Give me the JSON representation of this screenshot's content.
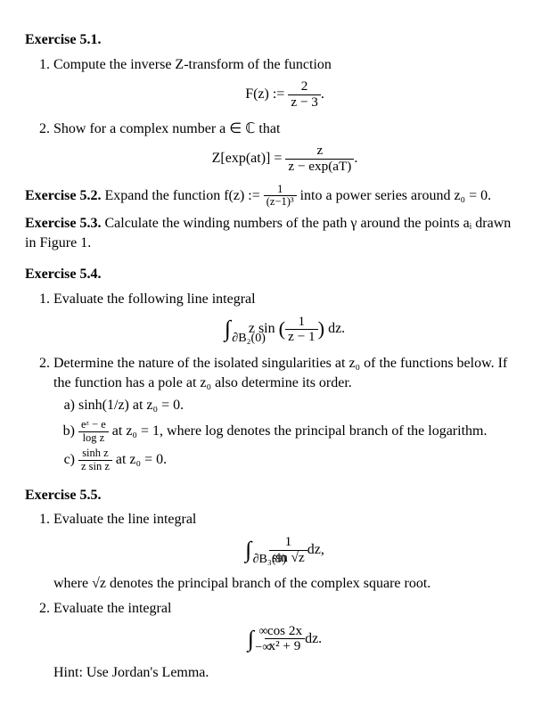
{
  "ex51": {
    "title": "Exercise 5.1.",
    "item1": "Compute the inverse Z-transform of the function",
    "formula1_lhs": "F(z) :=",
    "formula1_num": "2",
    "formula1_den": "z − 3",
    "formula1_end": ".",
    "item2": "Show for a complex number a ∈ ℂ that",
    "formula2_lhs": "Z[exp(at)] =",
    "formula2_num": "z",
    "formula2_den": "z − exp(aT)",
    "formula2_end": "."
  },
  "ex52": {
    "title": "Exercise 5.2.",
    "text_a": "Expand the function f(z) := ",
    "frac_num": "1",
    "frac_den": "(z−1)³",
    "text_b": " into a power series around z₀ = 0."
  },
  "ex53": {
    "title": "Exercise 5.3.",
    "text": "Calculate the winding numbers of the path γ around the points aᵢ drawn in Figure 1."
  },
  "ex54": {
    "title": "Exercise 5.4.",
    "item1": "Evaluate the following line integral",
    "int1_sub": "∂B₂(0)",
    "int1_body_a": "z sin",
    "int1_frac_num": "1",
    "int1_frac_den": "z − 1",
    "int1_body_b": "dz.",
    "item2": "Determine the nature of the isolated singularities at z₀ of the functions below. If the function has a pole at z₀ also determine its order.",
    "a": "sinh(1/z) at z₀ = 0.",
    "b_frac_num": "eᶻ − e",
    "b_frac_den": "log z",
    "b_rest": " at z₀ = 1, where log denotes the principal branch of the logarithm.",
    "c_frac_num": "sinh z",
    "c_frac_den": "z sin z",
    "c_rest": " at z₀ = 0."
  },
  "ex55": {
    "title": "Exercise 5.5.",
    "item1": "Evaluate the line integral",
    "int1_sub": "∂B₃(9)",
    "int1_frac_num": "1",
    "int1_frac_den": "sin √z",
    "int1_end": "dz,",
    "where": "where √z denotes the principal branch of the complex square root.",
    "item2": "Evaluate the integral",
    "int2_lb": "−∞",
    "int2_ub": "∞",
    "int2_frac_num": "cos 2x",
    "int2_frac_den": "x² + 9",
    "int2_end": "dz.",
    "hint": "Hint: Use Jordan's Lemma."
  }
}
